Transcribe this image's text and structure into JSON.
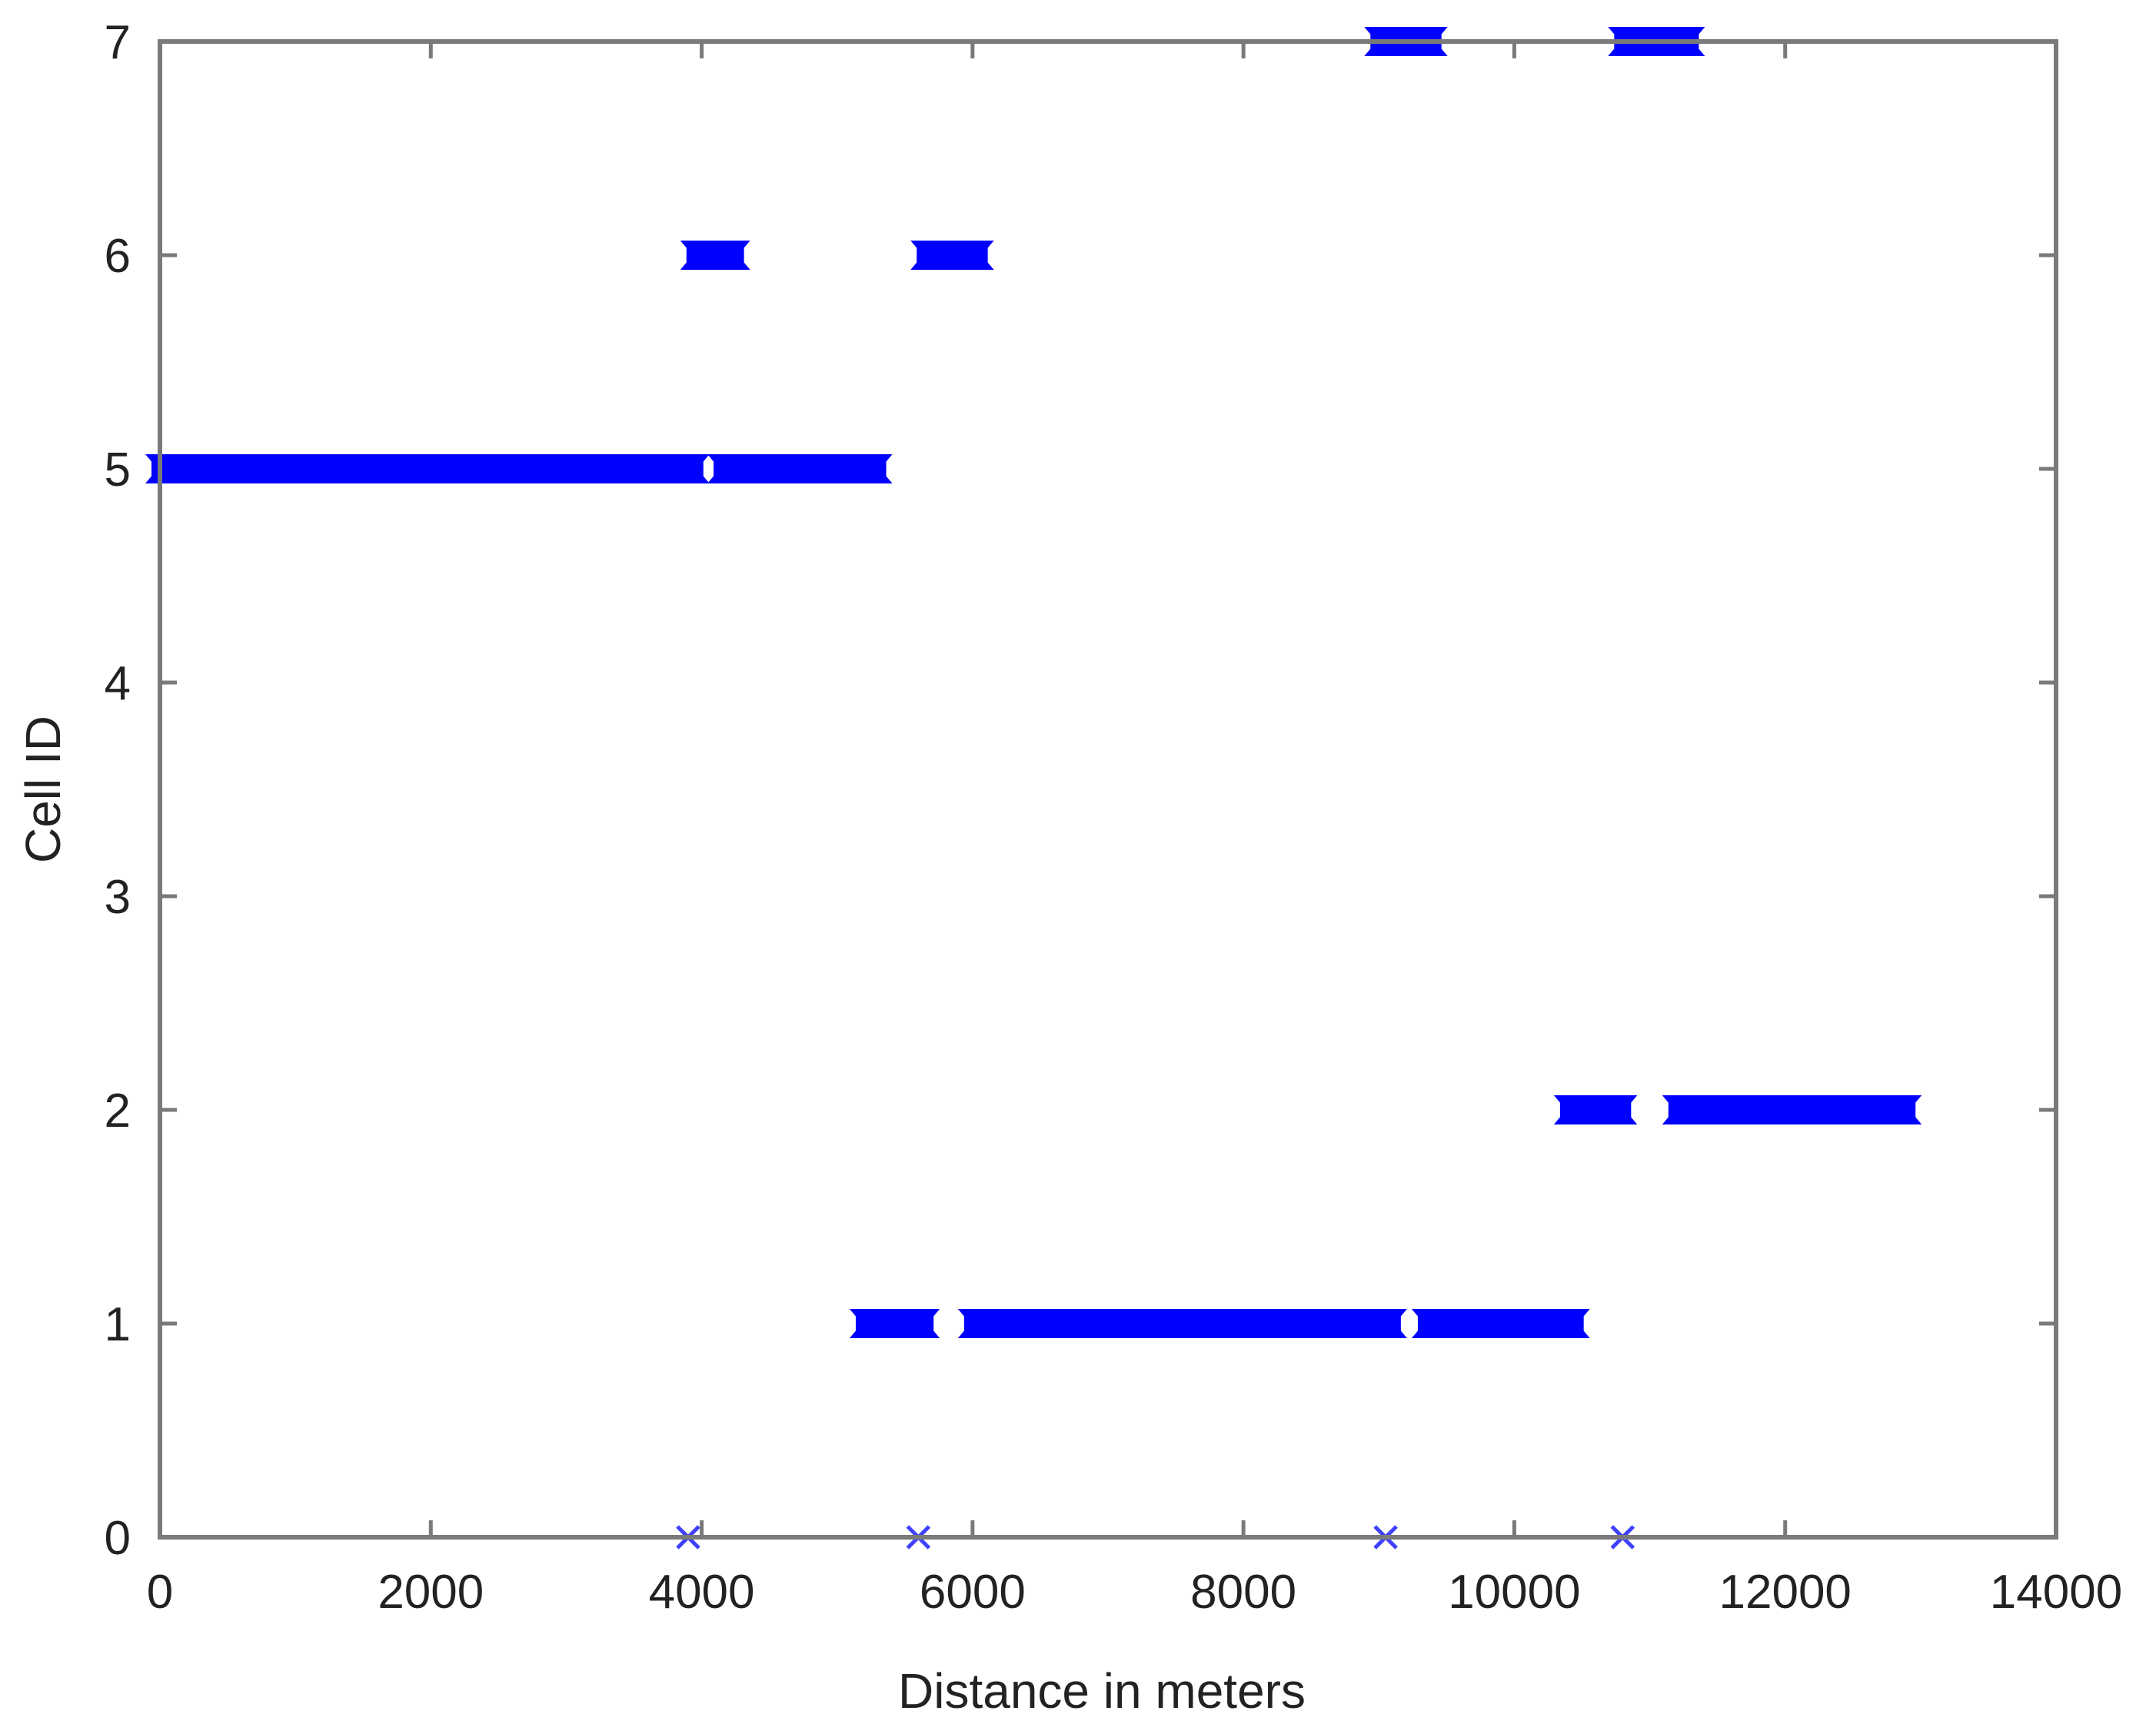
{
  "chart_data": {
    "type": "scatter",
    "title": "",
    "xlabel": "Distance in meters",
    "ylabel": "Cell ID",
    "xlim": [
      0,
      14000
    ],
    "ylim": [
      0,
      7
    ],
    "xticks": [
      0,
      2000,
      4000,
      6000,
      8000,
      10000,
      12000,
      14000
    ],
    "yticks": [
      0,
      1,
      2,
      3,
      4,
      5,
      6,
      7
    ],
    "grid": false,
    "marker": "x",
    "series_color": "#0000ff",
    "segments": [
      {
        "cell": 5,
        "x_start": 0,
        "x_end": 3950
      },
      {
        "cell": 5,
        "x_start": 4150,
        "x_end": 5300
      },
      {
        "cell": 6,
        "x_start": 3950,
        "x_end": 4250
      },
      {
        "cell": 6,
        "x_start": 5650,
        "x_end": 6050
      },
      {
        "cell": 1,
        "x_start": 5200,
        "x_end": 5650
      },
      {
        "cell": 1,
        "x_start": 6000,
        "x_end": 9100
      },
      {
        "cell": 1,
        "x_start": 9350,
        "x_end": 10450
      },
      {
        "cell": 7,
        "x_start": 9000,
        "x_end": 9400
      },
      {
        "cell": 7,
        "x_start": 10800,
        "x_end": 11300
      },
      {
        "cell": 2,
        "x_start": 10400,
        "x_end": 10800
      },
      {
        "cell": 2,
        "x_start": 11200,
        "x_end": 12900
      }
    ],
    "points": [
      {
        "x": 3900,
        "y": 0
      },
      {
        "x": 5600,
        "y": 0
      },
      {
        "x": 9050,
        "y": 0
      },
      {
        "x": 10800,
        "y": 0
      }
    ]
  }
}
